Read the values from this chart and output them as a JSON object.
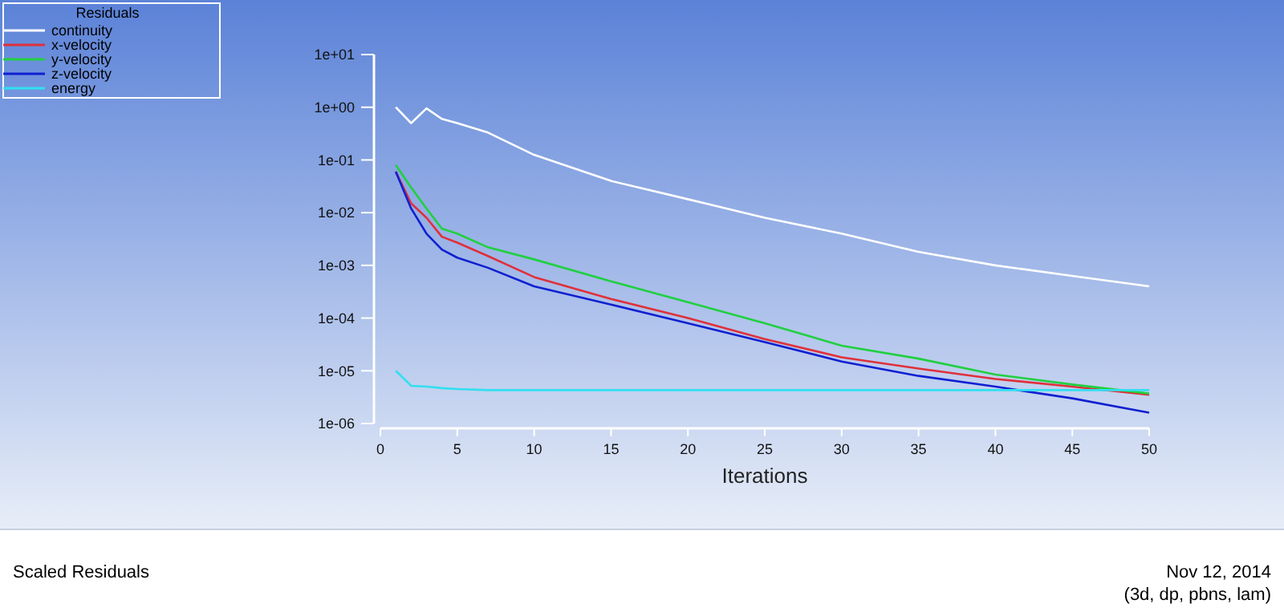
{
  "chart_data": {
    "type": "line",
    "title": "Scaled Residuals",
    "xlabel": "Iterations",
    "legend_title": "Residuals",
    "legend": "top left",
    "log": "y",
    "grid": false,
    "x": [
      1,
      2,
      3,
      4,
      5,
      7,
      10,
      15,
      20,
      25,
      30,
      35,
      40,
      45,
      50
    ],
    "xlim": [
      0,
      50
    ],
    "xticks": [
      0,
      5,
      10,
      15,
      20,
      25,
      30,
      35,
      40,
      45,
      50
    ],
    "ylim": [
      1e-06,
      10
    ],
    "yticks": [
      {
        "value": 10,
        "label": "1e+01"
      },
      {
        "value": 1,
        "label": "1e+00"
      },
      {
        "value": 0.1,
        "label": "1e-01"
      },
      {
        "value": 0.01,
        "label": "1e-02"
      },
      {
        "value": 0.001,
        "label": "1e-03"
      },
      {
        "value": 0.0001,
        "label": "1e-04"
      },
      {
        "value": 1e-05,
        "label": "1e-05"
      },
      {
        "value": 1e-06,
        "label": "1e-06"
      }
    ],
    "series": [
      {
        "name": "continuity",
        "color": "#ffffff",
        "values": [
          1.0,
          0.5,
          0.95,
          0.6,
          0.5,
          0.33,
          0.125,
          0.04,
          0.018,
          0.008,
          0.004,
          0.0018,
          0.001,
          0.00063,
          0.0004
        ]
      },
      {
        "name": "x-velocity",
        "color": "#e0303a",
        "values": [
          0.06,
          0.015,
          0.008,
          0.0035,
          0.0027,
          0.0015,
          0.0006,
          0.00023,
          0.0001,
          4e-05,
          1.8e-05,
          1.1e-05,
          7e-06,
          5e-06,
          3.5e-06
        ]
      },
      {
        "name": "y-velocity",
        "color": "#20d040",
        "values": [
          0.08,
          0.03,
          0.012,
          0.005,
          0.004,
          0.0022,
          0.0013,
          0.0005,
          0.0002,
          8e-05,
          3e-05,
          1.7e-05,
          8.5e-06,
          5.5e-06,
          3.7e-06
        ]
      },
      {
        "name": "z-velocity",
        "color": "#1020d0",
        "values": [
          0.06,
          0.012,
          0.004,
          0.002,
          0.0014,
          0.0009,
          0.0004,
          0.00018,
          8e-05,
          3.5e-05,
          1.5e-05,
          8e-06,
          5e-06,
          3e-06,
          1.6e-06
        ]
      },
      {
        "name": "energy",
        "color": "#30e0f0",
        "values": [
          1e-05,
          5.2e-06,
          5e-06,
          4.7e-06,
          4.5e-06,
          4.3e-06,
          4.3e-06,
          4.3e-06,
          4.3e-06,
          4.3e-06,
          4.3e-06,
          4.3e-06,
          4.3e-06,
          4.3e-06,
          4.3e-06
        ]
      }
    ],
    "annotations": [
      "Nov 12, 2014",
      "(3d, dp, pbns, lam)"
    ]
  }
}
